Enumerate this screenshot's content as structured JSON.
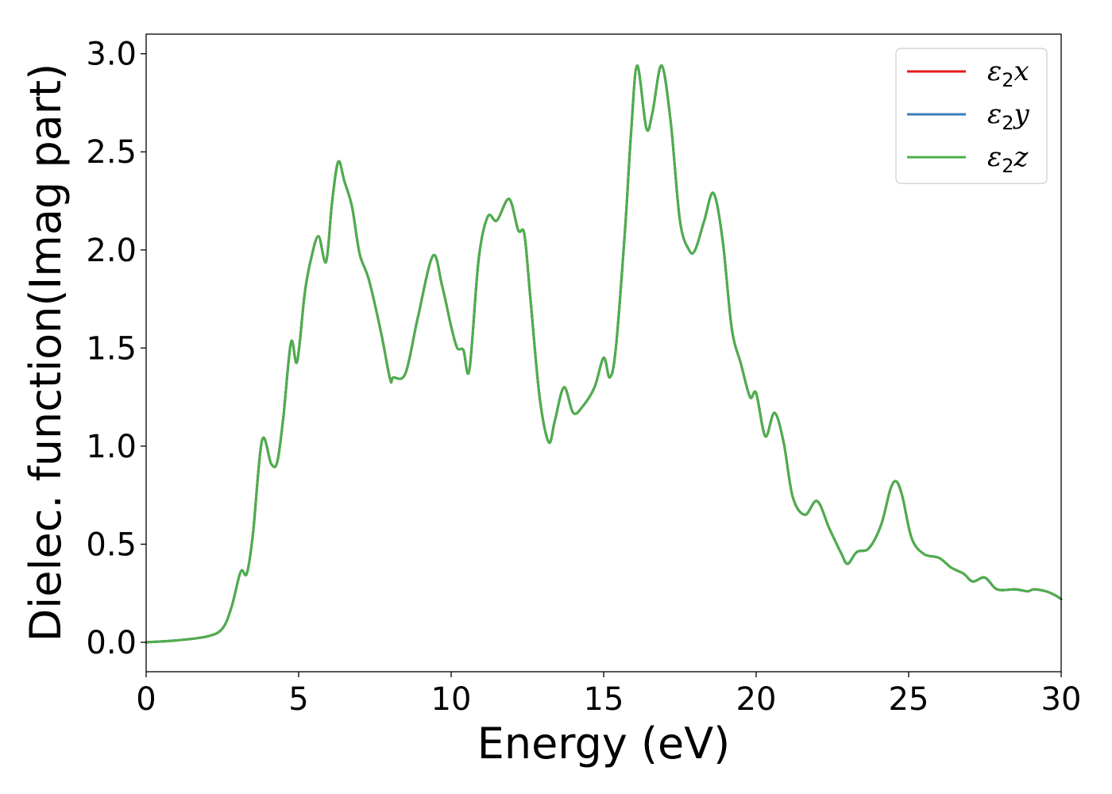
{
  "chart_data": {
    "type": "line",
    "xlabel": "Energy (eV)",
    "ylabel": "Dielec. function(Imag part)",
    "xlim": [
      0,
      30
    ],
    "ylim": [
      -0.15,
      3.1
    ],
    "xticks": [
      0,
      5,
      10,
      15,
      20,
      25,
      30
    ],
    "xtick_labels": [
      "0",
      "5",
      "10",
      "15",
      "20",
      "25",
      "30"
    ],
    "yticks": [
      0.0,
      0.5,
      1.0,
      1.5,
      2.0,
      2.5,
      3.0
    ],
    "ytick_labels": [
      "0.0",
      "0.5",
      "1.0",
      "1.5",
      "2.0",
      "2.5",
      "3.0"
    ],
    "grid": false,
    "legend_position": "top-right",
    "series": [
      {
        "name": "ε₂x",
        "symbol": "ε",
        "sub": "2",
        "axis": "x",
        "color": "#e41a1c"
      },
      {
        "name": "ε₂y",
        "symbol": "ε",
        "sub": "2",
        "axis": "y",
        "color": "#377eb8"
      },
      {
        "name": "ε₂z",
        "symbol": "ε",
        "sub": "2",
        "axis": "z",
        "color": "#4daf4a"
      }
    ],
    "x": [
      0,
      1,
      2,
      2.5,
      2.8,
      3.1,
      3.3,
      3.5,
      3.8,
      4.1,
      4.3,
      4.5,
      4.75,
      4.95,
      5.2,
      5.4,
      5.65,
      5.9,
      6.1,
      6.3,
      6.5,
      6.75,
      7.0,
      7.3,
      7.7,
      8.0,
      8.1,
      8.5,
      8.9,
      9.4,
      9.7,
      10.0,
      10.2,
      10.4,
      10.6,
      10.9,
      11.2,
      11.5,
      11.9,
      12.2,
      12.4,
      12.6,
      12.9,
      13.2,
      13.4,
      13.7,
      14.0,
      14.3,
      14.7,
      15.0,
      15.2,
      15.4,
      15.7,
      15.9,
      16.1,
      16.4,
      16.6,
      16.9,
      17.2,
      17.5,
      17.8,
      18.0,
      18.3,
      18.6,
      18.9,
      19.2,
      19.5,
      19.8,
      20.0,
      20.3,
      20.6,
      20.9,
      21.2,
      21.6,
      22.0,
      22.4,
      22.8,
      23.0,
      23.3,
      23.7,
      24.1,
      24.4,
      24.6,
      24.8,
      25.1,
      25.5,
      26.0,
      26.4,
      26.8,
      27.1,
      27.5,
      27.9,
      28.5,
      28.9,
      29.1,
      29.5,
      29.8,
      30
    ],
    "values": [
      0.0,
      0.01,
      0.03,
      0.07,
      0.18,
      0.36,
      0.35,
      0.55,
      1.03,
      0.91,
      0.92,
      1.15,
      1.53,
      1.43,
      1.78,
      1.95,
      2.07,
      1.94,
      2.25,
      2.45,
      2.35,
      2.22,
      1.98,
      1.85,
      1.58,
      1.34,
      1.35,
      1.37,
      1.65,
      1.97,
      1.82,
      1.61,
      1.5,
      1.49,
      1.39,
      1.95,
      2.17,
      2.15,
      2.26,
      2.1,
      2.08,
      1.75,
      1.25,
      1.02,
      1.13,
      1.3,
      1.17,
      1.2,
      1.3,
      1.45,
      1.35,
      1.5,
      2.1,
      2.6,
      2.94,
      2.62,
      2.7,
      2.94,
      2.65,
      2.15,
      2.0,
      2.0,
      2.15,
      2.29,
      2.05,
      1.6,
      1.42,
      1.25,
      1.27,
      1.05,
      1.17,
      1.02,
      0.74,
      0.65,
      0.72,
      0.58,
      0.45,
      0.4,
      0.46,
      0.48,
      0.6,
      0.78,
      0.82,
      0.74,
      0.53,
      0.45,
      0.43,
      0.38,
      0.35,
      0.31,
      0.33,
      0.27,
      0.27,
      0.26,
      0.27,
      0.26,
      0.24,
      0.22
    ]
  }
}
